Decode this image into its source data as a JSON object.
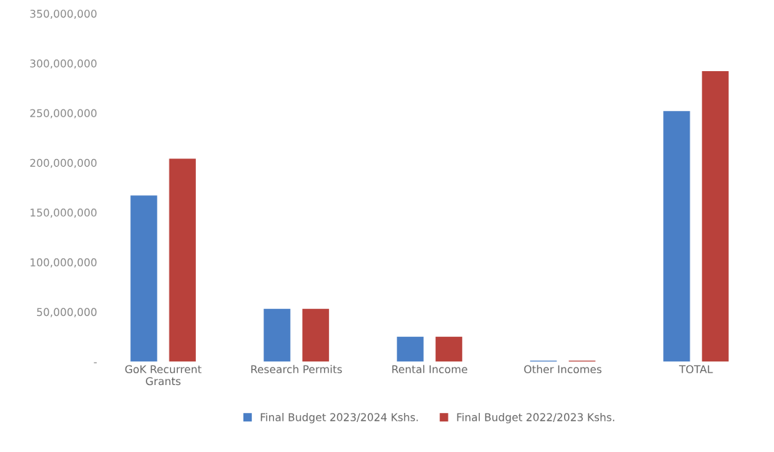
{
  "chart_data": {
    "type": "bar",
    "categories": [
      "GoK Recurrent\nGrants",
      "Research Permits",
      "Rental Income",
      "Other Incomes",
      "TOTAL"
    ],
    "series": [
      {
        "name": "Final Budget 2023/2024 Kshs.",
        "color": "#4a7fc6",
        "values": [
          167000000,
          53000000,
          25000000,
          1000000,
          252000000
        ]
      },
      {
        "name": "Final Budget 2022/2023 Kshs.",
        "color": "#b9413b",
        "values": [
          204000000,
          53000000,
          25000000,
          1000000,
          292000000
        ]
      }
    ],
    "ylim": [
      0,
      350000000
    ],
    "yticks": [
      {
        "value": 0,
        "label": "-"
      },
      {
        "value": 50000000,
        "label": "50,000,000"
      },
      {
        "value": 100000000,
        "label": "100,000,000"
      },
      {
        "value": 150000000,
        "label": "150,000,000"
      },
      {
        "value": 200000000,
        "label": "200,000,000"
      },
      {
        "value": 250000000,
        "label": "250,000,000"
      },
      {
        "value": 300000000,
        "label": "300,000,000"
      },
      {
        "value": 350000000,
        "label": "350,000,000"
      }
    ],
    "grid": false,
    "legend": "bottom"
  }
}
